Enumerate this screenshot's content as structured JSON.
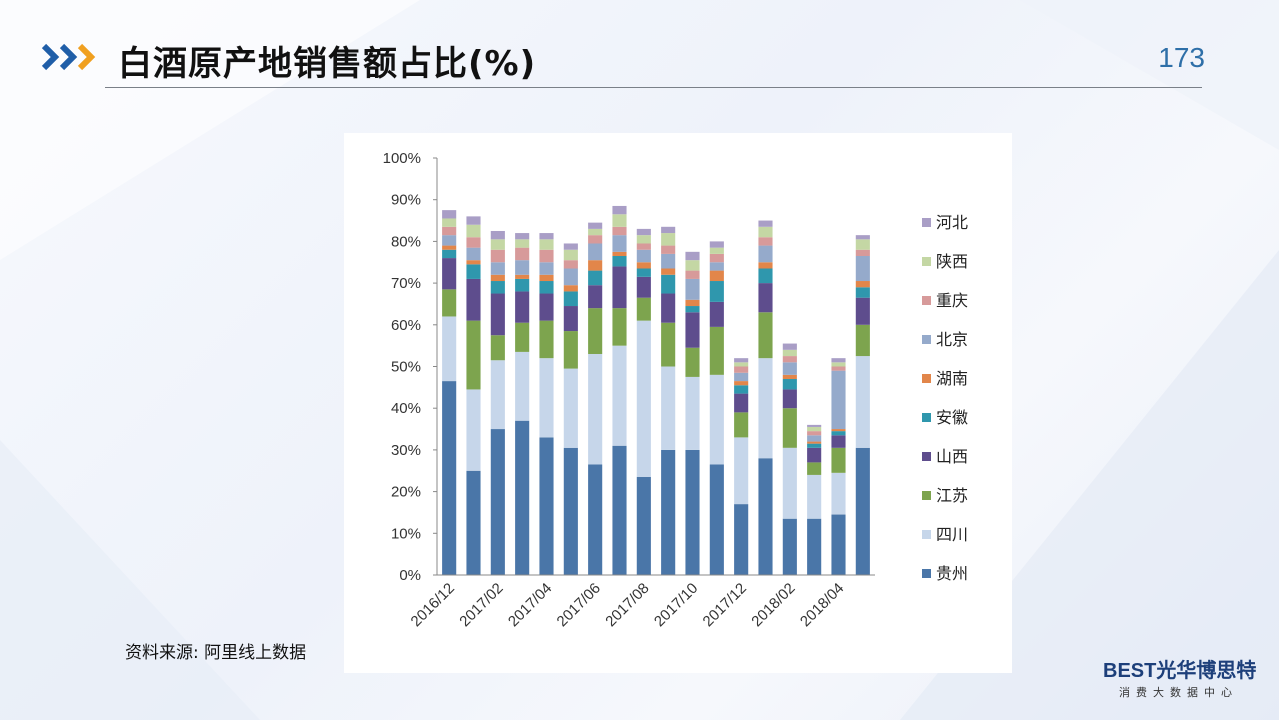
{
  "header": {
    "title": "白酒原产地销售额占比(%)",
    "page_number": "173"
  },
  "source": "资料来源: 阿里线上数据",
  "logo": {
    "main": "BEST光华博思特",
    "sub": "消费大数据中心"
  },
  "colors": {
    "accent_blue": "#2e6fa8",
    "chevron_orange": "#f0a020",
    "chevron_blue": "#1f5ea8"
  },
  "chart_data": {
    "type": "bar",
    "stacked": true,
    "ylim": [
      0,
      100
    ],
    "yticks": [
      "0%",
      "10%",
      "20%",
      "30%",
      "40%",
      "50%",
      "60%",
      "70%",
      "80%",
      "90%",
      "100%"
    ],
    "xticks": [
      "2016/12",
      "2017/02",
      "2017/04",
      "2017/06",
      "2017/08",
      "2017/10",
      "2017/12",
      "2018/02",
      "2018/04"
    ],
    "categories": [
      "2016/12",
      "2017/01",
      "2017/02",
      "2017/03",
      "2017/04",
      "2017/05",
      "2017/06",
      "2017/07",
      "2017/08",
      "2017/09",
      "2017/10",
      "2017/11",
      "2017/12",
      "2018/01",
      "2018/02",
      "2018/03",
      "2018/04",
      "2018/05"
    ],
    "legend_position": "right",
    "series": [
      {
        "name": "贵州",
        "color": "#4a76a8",
        "values": [
          46.5,
          25,
          35,
          37,
          33,
          30.5,
          26.5,
          31,
          23.5,
          30,
          30,
          26.5,
          17,
          28,
          13.5,
          13.5,
          14.5,
          30.5
        ]
      },
      {
        "name": "四川",
        "color": "#c6d6ea",
        "values": [
          15.5,
          19.5,
          16.5,
          16.5,
          19,
          19,
          26.5,
          24,
          37.5,
          20,
          17.5,
          21.5,
          16,
          24,
          17,
          10.5,
          10,
          22
        ]
      },
      {
        "name": "江苏",
        "color": "#7da44e",
        "values": [
          6.5,
          16.5,
          6,
          7,
          9,
          9,
          11,
          9,
          5.5,
          10.5,
          7,
          11.5,
          6,
          11,
          9.5,
          3,
          6,
          7.5
        ]
      },
      {
        "name": "山西",
        "color": "#5e4d8d",
        "values": [
          7.5,
          10,
          10,
          7.5,
          6.5,
          6,
          5.5,
          10,
          5,
          7,
          8.5,
          6,
          4.5,
          7,
          4.5,
          3.5,
          3,
          6.5
        ]
      },
      {
        "name": "安徽",
        "color": "#2f97ad",
        "values": [
          2,
          3.5,
          3,
          3,
          3,
          3.5,
          3.5,
          2.5,
          2,
          4.5,
          1.5,
          5,
          2,
          3.5,
          2.5,
          1,
          1,
          2.5
        ]
      },
      {
        "name": "湖南",
        "color": "#e2864a",
        "values": [
          1,
          1,
          1.5,
          1,
          1.5,
          1.5,
          2.5,
          1,
          1.5,
          1.5,
          1.5,
          2.5,
          1,
          1.5,
          1,
          0.5,
          0.5,
          1.5
        ]
      },
      {
        "name": "北京",
        "color": "#95aacb",
        "values": [
          2.5,
          3,
          3,
          3.5,
          3,
          4,
          4,
          4,
          3,
          3.5,
          5,
          2,
          2,
          4,
          3,
          1.5,
          14,
          6
        ]
      },
      {
        "name": "重庆",
        "color": "#d79a9a",
        "values": [
          2,
          2.5,
          3,
          3,
          3,
          2,
          2,
          2,
          1.5,
          2,
          2,
          2,
          1.5,
          2,
          1.5,
          1,
          1,
          1.5
        ]
      },
      {
        "name": "陕西",
        "color": "#c4d7a4",
        "values": [
          2,
          3,
          2.5,
          2,
          2.5,
          2.5,
          1.5,
          3,
          2,
          3,
          2.5,
          1.5,
          1,
          2.5,
          1.5,
          1,
          1,
          2.5
        ]
      },
      {
        "name": "河北",
        "color": "#a99ec6",
        "values": [
          2,
          2,
          2,
          1.5,
          1.5,
          1.5,
          1.5,
          2,
          1.5,
          1.5,
          2,
          1.5,
          1,
          1.5,
          1.5,
          0.5,
          1,
          1
        ]
      }
    ]
  }
}
